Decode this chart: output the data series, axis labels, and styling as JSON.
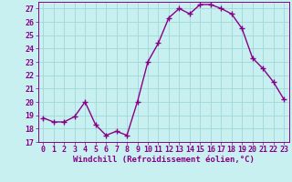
{
  "x": [
    0,
    1,
    2,
    3,
    4,
    5,
    6,
    7,
    8,
    9,
    10,
    11,
    12,
    13,
    14,
    15,
    16,
    17,
    18,
    19,
    20,
    21,
    22,
    23
  ],
  "y": [
    18.8,
    18.5,
    18.5,
    18.9,
    20.0,
    18.3,
    17.5,
    17.8,
    17.5,
    20.0,
    23.0,
    24.4,
    26.3,
    27.0,
    26.6,
    27.3,
    27.3,
    27.0,
    26.6,
    25.5,
    23.3,
    22.5,
    21.5,
    20.2
  ],
  "line_color": "#880088",
  "marker": "+",
  "marker_size": 4,
  "marker_linewidth": 1.0,
  "bg_color": "#c8f0f0",
  "grid_color": "#a0d8d8",
  "xlabel": "Windchill (Refroidissement éolien,°C)",
  "ylim": [
    17,
    27.5
  ],
  "xlim": [
    -0.5,
    23.5
  ],
  "yticks": [
    17,
    18,
    19,
    20,
    21,
    22,
    23,
    24,
    25,
    26,
    27
  ],
  "xticks": [
    0,
    1,
    2,
    3,
    4,
    5,
    6,
    7,
    8,
    9,
    10,
    11,
    12,
    13,
    14,
    15,
    16,
    17,
    18,
    19,
    20,
    21,
    22,
    23
  ],
  "label_fontsize": 6.5,
  "tick_fontsize": 6.0,
  "line_width": 1.0
}
